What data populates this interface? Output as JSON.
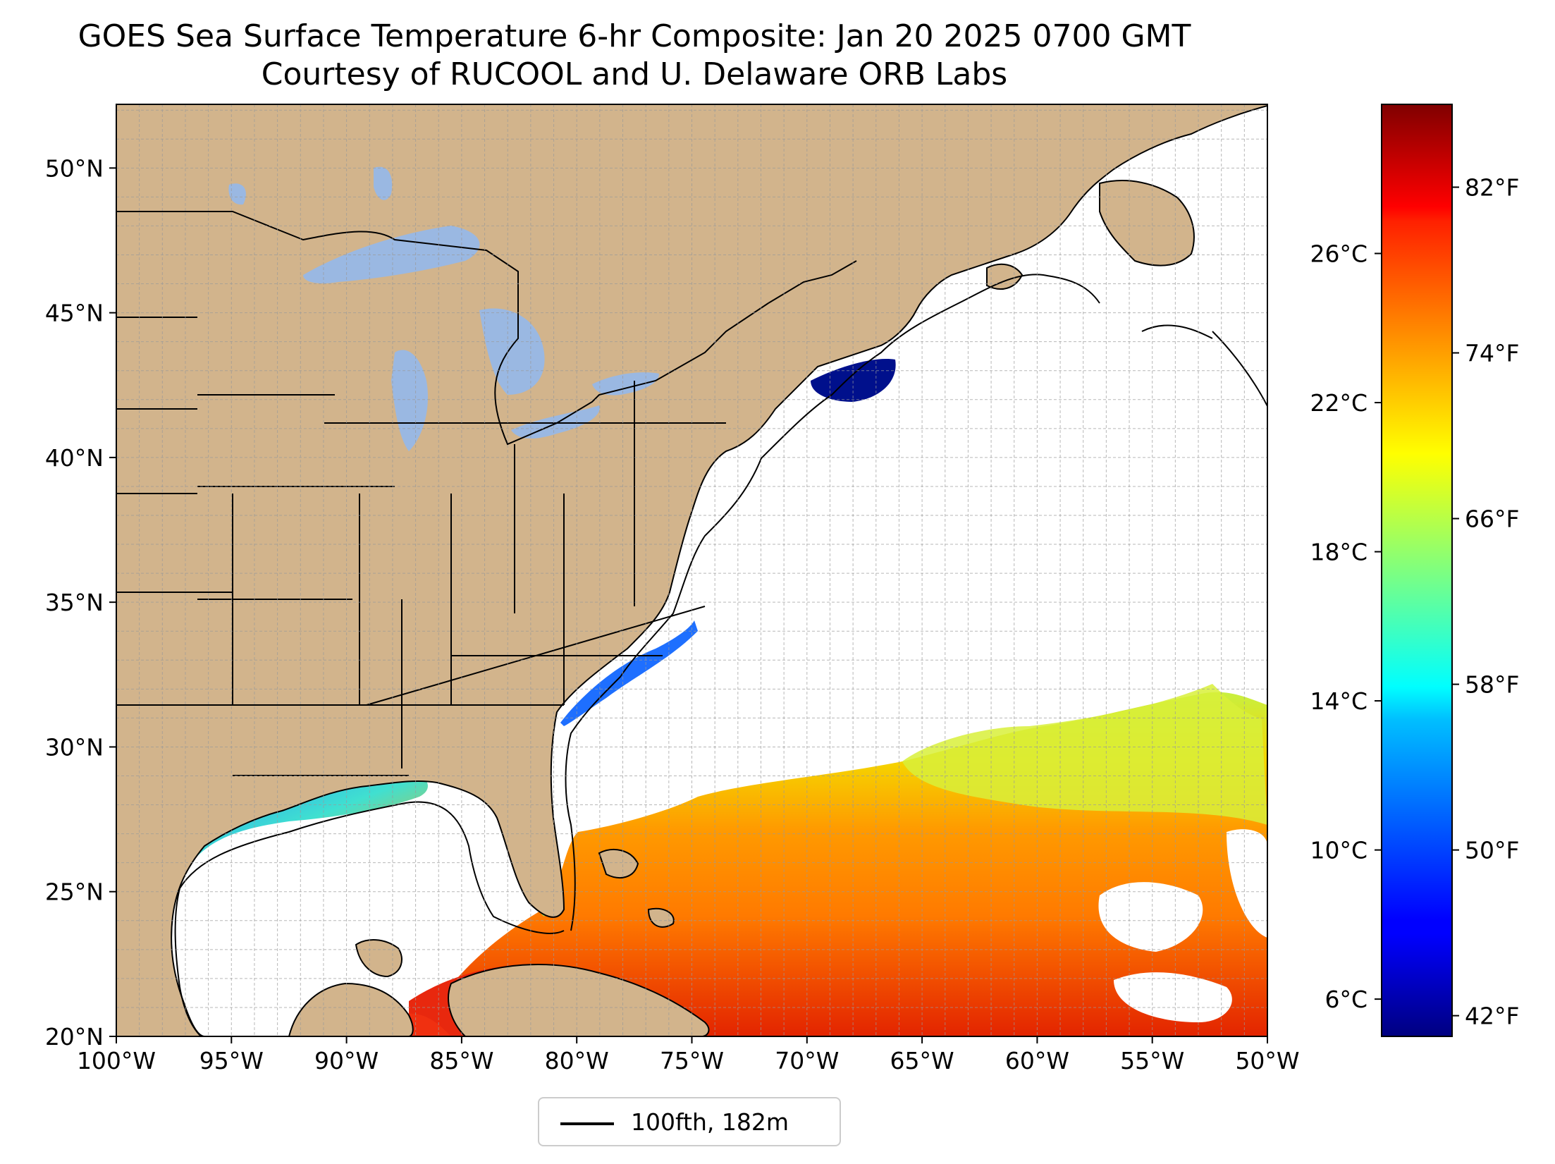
{
  "title": "GOES Sea Surface Temperature 6-hr Composite: Jan 20 2025 0700 GMT",
  "subtitle": "Courtesy of RUCOOL and U. Delaware ORB Labs",
  "map": {
    "lon_range": [
      -100,
      -50
    ],
    "lat_range": [
      20,
      52.2
    ],
    "x_ticks": [
      {
        "lon": -100,
        "label": "100°W"
      },
      {
        "lon": -95,
        "label": "95°W"
      },
      {
        "lon": -90,
        "label": "90°W"
      },
      {
        "lon": -85,
        "label": "85°W"
      },
      {
        "lon": -80,
        "label": "80°W"
      },
      {
        "lon": -75,
        "label": "75°W"
      },
      {
        "lon": -70,
        "label": "70°W"
      },
      {
        "lon": -65,
        "label": "65°W"
      },
      {
        "lon": -60,
        "label": "60°W"
      },
      {
        "lon": -55,
        "label": "55°W"
      },
      {
        "lon": -50,
        "label": "50°W"
      }
    ],
    "y_ticks": [
      {
        "lat": 20,
        "label": "20°N"
      },
      {
        "lat": 25,
        "label": "25°N"
      },
      {
        "lat": 30,
        "label": "30°N"
      },
      {
        "lat": 35,
        "label": "35°N"
      },
      {
        "lat": 40,
        "label": "40°N"
      },
      {
        "lat": 45,
        "label": "45°N"
      },
      {
        "lat": 50,
        "label": "50°N"
      }
    ],
    "grid": "on (dashed, 1 degree)",
    "colors": {
      "land": "#d2b48c",
      "lakes": "#9ab8e2",
      "ocean": "#ffffff",
      "borders": "#000000"
    }
  },
  "colorbar": {
    "colormap": "jet",
    "celsius_ticks": [
      {
        "value": 6,
        "label": "6°C"
      },
      {
        "value": 10,
        "label": "10°C"
      },
      {
        "value": 14,
        "label": "14°C"
      },
      {
        "value": 18,
        "label": "18°C"
      },
      {
        "value": 22,
        "label": "22°C"
      },
      {
        "value": 26,
        "label": "26°C"
      }
    ],
    "fahrenheit_ticks": [
      {
        "value": 42,
        "label": "42°F"
      },
      {
        "value": 50,
        "label": "50°F"
      },
      {
        "value": 58,
        "label": "58°F"
      },
      {
        "value": 66,
        "label": "66°F"
      },
      {
        "value": 74,
        "label": "74°F"
      },
      {
        "value": 82,
        "label": "82°F"
      }
    ]
  },
  "legend": {
    "label": "100fth, 182m",
    "line_color": "#000000"
  }
}
